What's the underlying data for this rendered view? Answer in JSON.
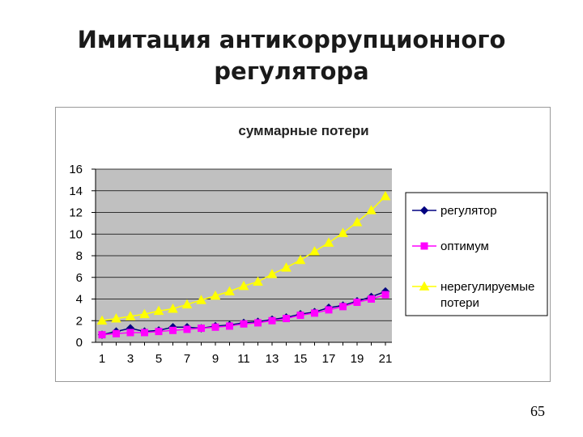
{
  "slide": {
    "title_line1": "Имитация антикоррупционного",
    "title_line2": "регулятора",
    "page_number": "65"
  },
  "colors": {
    "plot_background": "#c0c0c0",
    "regulator": "#000080",
    "optimum": "#ff00ff",
    "unregulated": "#ffff00"
  },
  "chart_data": {
    "type": "line",
    "title": "суммарные потери",
    "xlabel": "",
    "ylabel": "",
    "ylim": [
      0,
      16
    ],
    "yticks": [
      0,
      2,
      4,
      6,
      8,
      10,
      12,
      14,
      16
    ],
    "x": [
      1,
      2,
      3,
      4,
      5,
      6,
      7,
      8,
      9,
      10,
      11,
      12,
      13,
      14,
      15,
      16,
      17,
      18,
      19,
      20,
      21
    ],
    "xtick_labels": [
      "1",
      "3",
      "5",
      "7",
      "9",
      "11",
      "13",
      "15",
      "17",
      "19",
      "21"
    ],
    "grid": true,
    "legend_position": "right",
    "series": [
      {
        "name": "регулятор",
        "marker": "diamond",
        "color": "#000080",
        "values": [
          0.7,
          1.0,
          1.3,
          1.0,
          1.1,
          1.4,
          1.4,
          1.3,
          1.5,
          1.6,
          1.8,
          1.9,
          2.1,
          2.3,
          2.6,
          2.8,
          3.2,
          3.4,
          3.8,
          4.2,
          4.7
        ]
      },
      {
        "name": "оптимум",
        "marker": "square",
        "color": "#ff00ff",
        "values": [
          0.7,
          0.8,
          0.9,
          0.9,
          1.0,
          1.1,
          1.2,
          1.3,
          1.4,
          1.5,
          1.7,
          1.8,
          2.0,
          2.2,
          2.5,
          2.7,
          3.0,
          3.3,
          3.7,
          4.0,
          4.4
        ]
      },
      {
        "name": "нерегулируемые потери",
        "marker": "triangle",
        "color": "#ffff00",
        "legend_lines": [
          "нерегулируемые",
          "потери"
        ],
        "values": [
          2.0,
          2.2,
          2.4,
          2.6,
          2.9,
          3.1,
          3.5,
          3.9,
          4.3,
          4.7,
          5.2,
          5.6,
          6.3,
          6.9,
          7.6,
          8.4,
          9.2,
          10.1,
          11.1,
          12.2,
          13.5
        ]
      }
    ]
  }
}
